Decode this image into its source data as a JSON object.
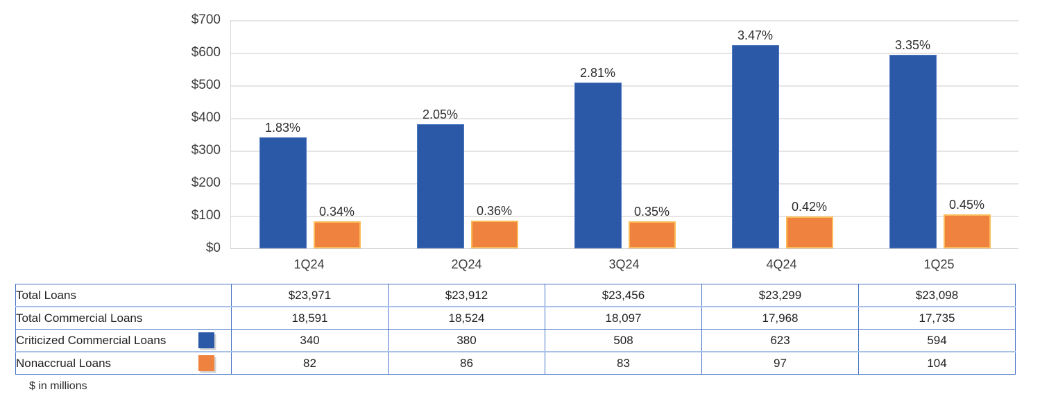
{
  "chart_data": {
    "type": "bar",
    "title": "",
    "categories": [
      "1Q24",
      "2Q24",
      "3Q24",
      "4Q24",
      "1Q25"
    ],
    "series": [
      {
        "key": "criticized-commercial-loans",
        "name": "Criticized Commercial Loans",
        "values": [
          340,
          380,
          508,
          623,
          594
        ],
        "data_labels": [
          "1.83%",
          "2.05%",
          "2.81%",
          "3.47%",
          "3.35%"
        ],
        "color": "#2b59a8",
        "border_color": "#4f7abf"
      },
      {
        "key": "nonaccrual-loans",
        "name": "Nonaccrual Loans",
        "values": [
          82,
          86,
          83,
          97,
          104
        ],
        "data_labels": [
          "0.34%",
          "0.36%",
          "0.35%",
          "0.42%",
          "0.45%"
        ],
        "color": "#f0823f",
        "border_color": "#fbbd59"
      }
    ],
    "y_axis": {
      "ticks": [
        "$0",
        "$100",
        "$200",
        "$300",
        "$400",
        "$500",
        "$600",
        "$700"
      ],
      "min": 0,
      "max": 700
    },
    "grid": true,
    "legend_position": "table-row-swatches"
  },
  "table": {
    "rows": [
      {
        "label": "Total Loans",
        "values": [
          "$23,971",
          "$23,912",
          "$23,456",
          "$23,299",
          "$23,098"
        ]
      },
      {
        "label": "Total Commercial Loans",
        "values": [
          "18,591",
          "18,524",
          "18,097",
          "17,968",
          "17,735"
        ]
      },
      {
        "label": "Criticized Commercial Loans",
        "swatch_color": "#2b59a8",
        "swatch_name": "criticized-legend-swatch",
        "values": [
          "340",
          "380",
          "508",
          "623",
          "594"
        ]
      },
      {
        "label": "Nonaccrual Loans",
        "swatch_color": "#f0823f",
        "swatch_name": "nonaccrual-legend-swatch",
        "values": [
          "82",
          "86",
          "83",
          "97",
          "104"
        ]
      }
    ]
  },
  "footnote": "$ in millions"
}
